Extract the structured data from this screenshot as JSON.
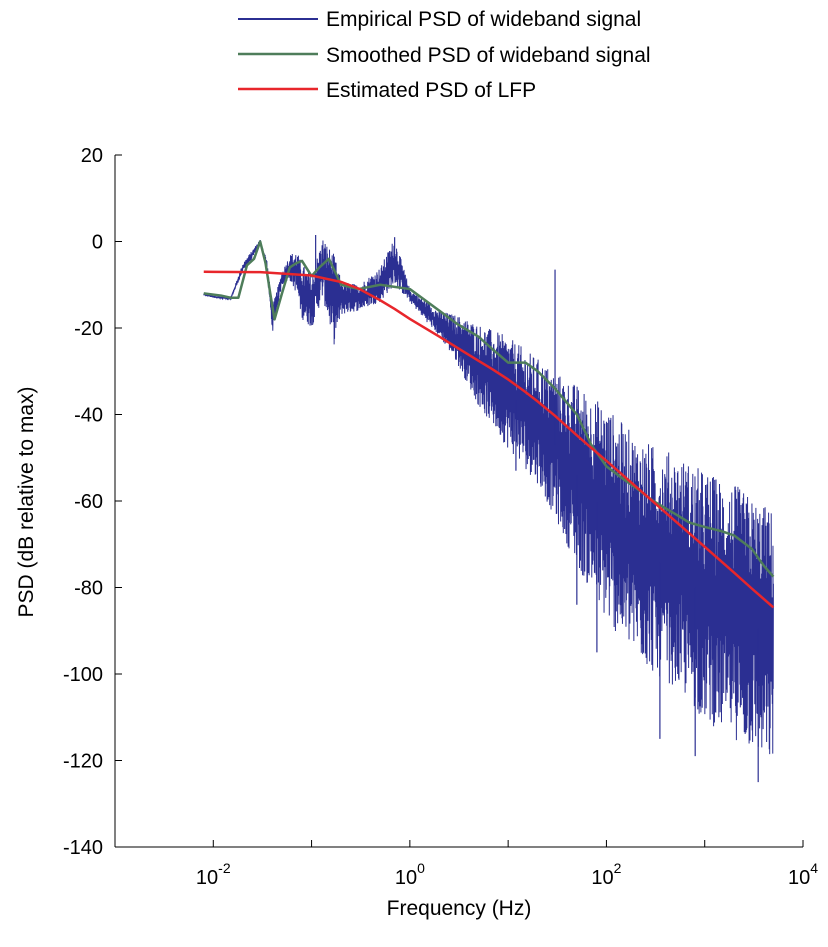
{
  "chart_data": {
    "type": "line",
    "xlabel": "Frequency (Hz)",
    "ylabel": "PSD (dB relative to max)",
    "x_scale": "log",
    "xlim": [
      0.001,
      10000
    ],
    "ylim": [
      -140,
      20
    ],
    "x_ticks": [
      {
        "value": 0.01,
        "base": "10",
        "exp": "-2"
      },
      {
        "value": 1,
        "base": "10",
        "exp": "0"
      },
      {
        "value": 100,
        "base": "10",
        "exp": "2"
      },
      {
        "value": 10000,
        "base": "10",
        "exp": "4"
      }
    ],
    "y_ticks": [
      20,
      0,
      -20,
      -40,
      -60,
      -80,
      -100,
      -120,
      -140
    ],
    "legend_position": "top",
    "grid": false,
    "series": [
      {
        "name": "Empirical PSD of wideband signal",
        "color": "#2b2f92",
        "kind": "noisy_band",
        "x": [
          0.008,
          0.01,
          0.015,
          0.02,
          0.025,
          0.03,
          0.035,
          0.04,
          0.05,
          0.06,
          0.07,
          0.08,
          0.1,
          0.13,
          0.17,
          0.2,
          0.3,
          0.5,
          0.7,
          1,
          2,
          3,
          5,
          10,
          20,
          30,
          50,
          100,
          200,
          300,
          500,
          1000,
          2000,
          3000,
          5000
        ],
        "y_upper": [
          -12,
          -12.5,
          -13,
          -5,
          -2,
          0.5,
          -4,
          -15,
          -7,
          -3,
          -2,
          -5,
          -8,
          1,
          -3,
          -9,
          -10,
          -6,
          1,
          -11,
          -16,
          -17,
          -19,
          -22,
          -27,
          -30,
          -33,
          -38,
          -45,
          -47,
          -49,
          -53,
          -56,
          -59,
          -62
        ],
        "y_lower": [
          -12.5,
          -13,
          -13.5,
          -7,
          -4,
          -0.5,
          -7,
          -21,
          -10,
          -9,
          -12,
          -18,
          -20,
          -13,
          -24,
          -17,
          -16,
          -14,
          -10,
          -14,
          -22,
          -28,
          -38,
          -48,
          -56,
          -64,
          -75,
          -88,
          -96,
          -100,
          -103,
          -111,
          -115,
          -118,
          -122
        ],
        "spikes": [
          {
            "x": 0.11,
            "y": 1.5
          },
          {
            "x": 0.7,
            "y": 1
          },
          {
            "x": 30,
            "y": -6.5
          },
          {
            "x": 12,
            "y": -53
          },
          {
            "x": 50,
            "y": -84
          },
          {
            "x": 80,
            "y": -95
          },
          {
            "x": 350,
            "y": -115
          },
          {
            "x": 800,
            "y": -119
          },
          {
            "x": 3500,
            "y": -125
          }
        ]
      },
      {
        "name": "Smoothed PSD of wideband signal",
        "color": "#4e7d5a",
        "x": [
          0.008,
          0.012,
          0.015,
          0.018,
          0.022,
          0.026,
          0.03,
          0.034,
          0.038,
          0.042,
          0.05,
          0.06,
          0.07,
          0.08,
          0.1,
          0.12,
          0.15,
          0.2,
          0.3,
          0.5,
          0.7,
          1,
          2,
          3,
          5,
          7,
          10,
          15,
          20,
          30,
          50,
          70,
          100,
          150,
          200,
          300,
          500,
          700,
          1000,
          1500,
          2000,
          3000,
          4000,
          5000
        ],
        "y": [
          -12,
          -12.5,
          -13,
          -13,
          -5.5,
          -4,
          0,
          -5,
          -12,
          -18,
          -12,
          -6,
          -5,
          -4.5,
          -8,
          -6,
          -4,
          -10,
          -11,
          -10,
          -10.5,
          -11,
          -16,
          -19,
          -22,
          -25,
          -28,
          -28,
          -30,
          -34,
          -40,
          -47,
          -52,
          -55,
          -57,
          -60,
          -63,
          -65,
          -66,
          -67,
          -68,
          -71,
          -75,
          -77.5
        ]
      },
      {
        "name": "Estimated PSD of LFP",
        "color": "#e8262b",
        "x": [
          0.008,
          0.01,
          0.03,
          0.1,
          0.2,
          0.3,
          0.5,
          0.7,
          1,
          1.5,
          2,
          3,
          5,
          7,
          10,
          15,
          20,
          30,
          50,
          70,
          100,
          150,
          200,
          300,
          500,
          700,
          1000,
          2000,
          3000,
          5000
        ],
        "y": [
          -7,
          -7.01,
          -7.09,
          -7.87,
          -9.36,
          -10.87,
          -13.6,
          -15.6,
          -17.9,
          -20.3,
          -22.0,
          -24.5,
          -27.6,
          -29.6,
          -31.9,
          -34.8,
          -37.0,
          -40.3,
          -44.8,
          -47.7,
          -50.7,
          -54.2,
          -56.7,
          -60.2,
          -64.6,
          -67.5,
          -70.6,
          -76.6,
          -80.2,
          -84.6
        ]
      }
    ]
  }
}
